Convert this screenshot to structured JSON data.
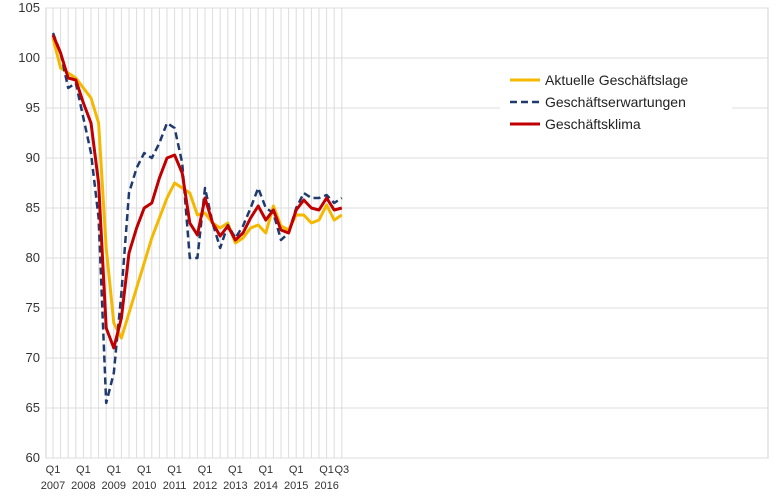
{
  "chart_data": {
    "type": "line",
    "title": "",
    "xlabel": "",
    "ylabel": "",
    "ylim": [
      60,
      105
    ],
    "yticks": [
      60,
      65,
      70,
      75,
      80,
      85,
      90,
      95,
      100,
      105
    ],
    "grid": "both",
    "legend_position": "top-right",
    "x_tick_labels": [
      {
        "q": "Q1",
        "year": "2007"
      },
      {
        "q": "Q1",
        "year": "2008"
      },
      {
        "q": "Q1",
        "year": "2009"
      },
      {
        "q": "Q1",
        "year": "2010"
      },
      {
        "q": "Q1",
        "year": "2011"
      },
      {
        "q": "Q1",
        "year": "2012"
      },
      {
        "q": "Q1",
        "year": "2013"
      },
      {
        "q": "Q1",
        "year": "2014"
      },
      {
        "q": "Q1",
        "year": "2015"
      },
      {
        "q": "Q1",
        "year": "2016"
      },
      {
        "q": "Q3",
        "year": ""
      }
    ],
    "x": [
      "Q1 2007",
      "Q2 2007",
      "Q3 2007",
      "Q4 2007",
      "Q1 2008",
      "Q2 2008",
      "Q3 2008",
      "Q4 2008",
      "Q1 2009",
      "Q2 2009",
      "Q3 2009",
      "Q4 2009",
      "Q1 2010",
      "Q2 2010",
      "Q3 2010",
      "Q4 2010",
      "Q1 2011",
      "Q2 2011",
      "Q3 2011",
      "Q4 2011",
      "Q1 2012",
      "Q2 2012",
      "Q3 2012",
      "Q4 2012",
      "Q1 2013",
      "Q2 2013",
      "Q3 2013",
      "Q4 2013",
      "Q1 2014",
      "Q2 2014",
      "Q3 2014",
      "Q4 2014",
      "Q1 2015",
      "Q2 2015",
      "Q3 2015",
      "Q4 2015",
      "Q1 2016",
      "Q2 2016",
      "Q3 2016"
    ],
    "series": [
      {
        "name": "Aktuelle Geschäftslage",
        "color": "#f5b800",
        "dash": "solid",
        "values": [
          102,
          99,
          98.5,
          98,
          97,
          96,
          93.5,
          81,
          73.5,
          72,
          74.5,
          77,
          79.5,
          82,
          84,
          86,
          87.5,
          87,
          86.5,
          84.3,
          84.5,
          83.5,
          83,
          83.5,
          81.5,
          82,
          83,
          83.3,
          82.5,
          85.2,
          83.2,
          82.8,
          84.3,
          84.3,
          83.5,
          83.8,
          85.3,
          83.8,
          84.3
        ]
      },
      {
        "name": "Geschäftserwartungen",
        "color": "#1f3a6e",
        "dash": "dashed",
        "values": [
          102.5,
          100.5,
          97,
          97.5,
          94,
          90.5,
          84,
          65.5,
          68.5,
          76.5,
          86.5,
          89,
          90.5,
          90,
          91.5,
          93.5,
          93,
          89.5,
          80,
          80,
          87,
          83.5,
          81,
          83.3,
          82,
          83.2,
          85,
          87,
          85,
          84.5,
          81.8,
          82.5,
          85,
          86.5,
          86,
          86,
          86.3,
          85.5,
          86
        ]
      },
      {
        "name": "Geschäftsklima",
        "color": "#c00000",
        "dash": "solid",
        "values": [
          102.3,
          100.5,
          98,
          97.8,
          95.5,
          93.5,
          87.5,
          73,
          71,
          74,
          80.5,
          83,
          85,
          85.5,
          88,
          90,
          90.3,
          88.5,
          83.5,
          82.3,
          86,
          83.5,
          82.2,
          83.2,
          81.8,
          82.5,
          84,
          85.2,
          83.8,
          84.8,
          82.8,
          82.5,
          84.8,
          85.8,
          85,
          84.8,
          86,
          84.8,
          85
        ]
      }
    ]
  }
}
